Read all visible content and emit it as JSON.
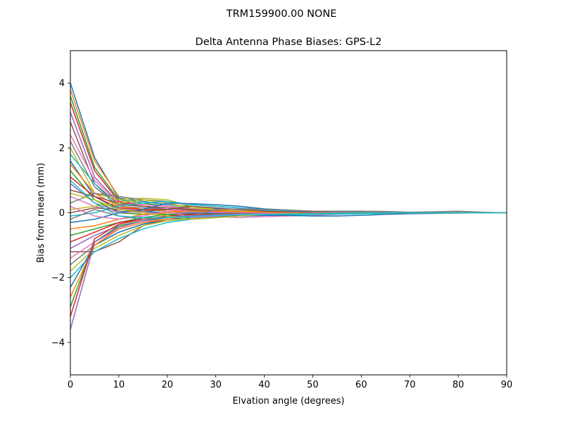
{
  "suptitle": "TRM159900.00    NONE",
  "chart_data": {
    "type": "line",
    "title": "Delta Antenna Phase Biases: GPS-L2",
    "xlabel": "Elvation angle (degrees)",
    "ylabel": "Bias from mean (mm)",
    "xlim": [
      0,
      90
    ],
    "ylim": [
      -5,
      5
    ],
    "xticks": [
      0,
      10,
      20,
      30,
      40,
      50,
      60,
      70,
      80,
      90
    ],
    "yticks": [
      -4,
      -2,
      0,
      2,
      4
    ],
    "ytick_labels": [
      "−4",
      "−2",
      "0",
      "2",
      "4"
    ],
    "grid": false,
    "colors": [
      "#1f77b4",
      "#ff7f0e",
      "#2ca02c",
      "#d62728",
      "#9467bd",
      "#8c564b",
      "#e377c2",
      "#7f7f7f",
      "#bcbd22",
      "#17becf"
    ],
    "x": [
      0,
      5,
      10,
      15,
      20,
      25,
      30,
      35,
      40,
      45,
      50,
      55,
      60,
      65,
      70,
      75,
      80,
      85,
      90
    ],
    "series": [
      {
        "values": [
          4.0,
          1.7,
          0.45,
          0.35,
          0.25,
          0.2,
          0.12,
          0.1,
          0.05,
          0.05,
          0.03,
          0.03,
          0.03,
          0.02,
          0.01,
          0.0,
          0.01,
          0.0,
          0.0
        ]
      },
      {
        "values": [
          3.8,
          1.6,
          0.5,
          0.4,
          0.3,
          0.15,
          0.1,
          0.08,
          0.05,
          0.04,
          0.03,
          0.02,
          0.04,
          0.03,
          0.01,
          0.01,
          0.0,
          0.0,
          0.0
        ]
      },
      {
        "values": [
          3.6,
          1.4,
          0.4,
          0.3,
          0.2,
          0.15,
          0.1,
          0.08,
          0.06,
          0.03,
          0.02,
          0.02,
          0.02,
          0.01,
          0.0,
          0.0,
          0.01,
          0.0,
          0.0
        ]
      },
      {
        "values": [
          3.4,
          1.3,
          0.35,
          0.25,
          0.2,
          0.1,
          0.08,
          0.05,
          0.04,
          0.03,
          0.02,
          0.01,
          0.02,
          0.01,
          0.0,
          -0.01,
          0.0,
          0.0,
          0.0
        ]
      },
      {
        "values": [
          3.1,
          1.1,
          0.3,
          0.2,
          0.15,
          0.1,
          0.05,
          0.05,
          0.03,
          0.02,
          0.02,
          0.01,
          0.01,
          0.01,
          0.0,
          0.0,
          0.0,
          0.0,
          0.0
        ]
      },
      {
        "values": [
          2.8,
          0.9,
          0.25,
          0.2,
          0.1,
          0.08,
          0.05,
          0.04,
          0.03,
          0.02,
          0.01,
          0.01,
          0.0,
          0.0,
          0.0,
          0.0,
          0.0,
          0.0,
          0.0
        ]
      },
      {
        "values": [
          2.4,
          1.0,
          0.3,
          0.25,
          0.2,
          0.12,
          0.1,
          0.07,
          0.05,
          0.03,
          0.02,
          0.02,
          0.01,
          0.0,
          0.0,
          0.0,
          0.0,
          0.0,
          0.0
        ]
      },
      {
        "values": [
          2.2,
          0.8,
          0.2,
          0.15,
          0.1,
          0.05,
          0.05,
          0.03,
          0.02,
          0.01,
          0.01,
          0.0,
          0.0,
          0.0,
          0.0,
          0.0,
          0.0,
          0.0,
          0.0
        ]
      },
      {
        "values": [
          2.0,
          0.6,
          0.4,
          0.45,
          0.4,
          0.2,
          0.1,
          0.05,
          0.03,
          0.02,
          0.02,
          0.01,
          0.01,
          0.0,
          0.0,
          0.0,
          0.0,
          0.0,
          0.0
        ]
      },
      {
        "values": [
          1.8,
          0.9,
          0.15,
          0.1,
          0.05,
          0.03,
          0.02,
          0.02,
          0.01,
          0.01,
          0.0,
          0.0,
          0.0,
          0.0,
          0.0,
          0.0,
          0.0,
          0.0,
          0.0
        ]
      },
      {
        "values": [
          1.6,
          0.5,
          0.1,
          0.05,
          0.0,
          -0.02,
          -0.02,
          -0.01,
          -0.01,
          0.0,
          0.0,
          0.0,
          0.0,
          0.0,
          0.0,
          0.0,
          0.0,
          0.0,
          0.0
        ]
      },
      {
        "values": [
          1.5,
          0.6,
          0.2,
          0.1,
          0.05,
          0.05,
          0.04,
          0.03,
          0.02,
          0.01,
          0.0,
          0.0,
          0.0,
          0.0,
          0.0,
          0.0,
          0.0,
          0.0,
          0.0
        ]
      },
      {
        "values": [
          1.3,
          0.4,
          0.0,
          -0.05,
          -0.05,
          -0.05,
          -0.03,
          -0.02,
          -0.02,
          -0.01,
          0.0,
          0.0,
          0.0,
          0.0,
          0.0,
          0.0,
          0.0,
          0.0,
          0.0
        ]
      },
      {
        "values": [
          1.1,
          0.5,
          0.15,
          0.1,
          0.1,
          0.05,
          0.03,
          0.02,
          0.02,
          0.01,
          0.0,
          0.0,
          0.0,
          0.0,
          0.0,
          0.0,
          0.0,
          0.0,
          0.0
        ]
      },
      {
        "values": [
          0.9,
          0.3,
          0.05,
          0.0,
          0.0,
          0.0,
          0.0,
          0.0,
          0.0,
          0.0,
          0.0,
          0.0,
          0.0,
          0.0,
          0.0,
          0.0,
          0.0,
          0.0,
          0.0
        ]
      },
      {
        "values": [
          0.7,
          0.5,
          0.3,
          0.2,
          0.15,
          0.1,
          0.05,
          0.03,
          0.02,
          0.01,
          0.0,
          0.0,
          0.0,
          0.0,
          0.0,
          0.0,
          0.0,
          0.0,
          0.0
        ]
      },
      {
        "values": [
          0.5,
          0.2,
          0.0,
          0.05,
          0.1,
          0.05,
          0.03,
          0.02,
          0.01,
          0.0,
          0.0,
          0.0,
          0.0,
          0.0,
          0.0,
          0.0,
          0.0,
          0.0,
          0.0
        ]
      },
      {
        "values": [
          0.3,
          0.6,
          0.5,
          0.4,
          0.35,
          0.25,
          0.2,
          0.15,
          0.1,
          0.05,
          0.03,
          0.02,
          0.01,
          0.0,
          0.0,
          0.0,
          0.0,
          0.0,
          0.0
        ]
      },
      {
        "values": [
          0.1,
          0.2,
          0.3,
          0.4,
          0.3,
          0.15,
          0.1,
          0.05,
          0.03,
          0.02,
          0.01,
          0.0,
          0.0,
          0.0,
          0.0,
          0.0,
          0.0,
          0.0,
          0.0
        ]
      },
      {
        "values": [
          -0.1,
          0.0,
          0.2,
          0.3,
          0.35,
          0.25,
          0.2,
          0.15,
          0.08,
          0.05,
          0.03,
          0.02,
          0.01,
          0.0,
          0.0,
          0.0,
          0.0,
          0.0,
          0.0
        ]
      },
      {
        "values": [
          -0.3,
          -0.2,
          0.0,
          0.1,
          0.3,
          0.28,
          0.25,
          0.2,
          0.12,
          0.08,
          0.05,
          0.03,
          0.02,
          0.01,
          0.0,
          0.0,
          0.0,
          0.0,
          0.0
        ]
      },
      {
        "values": [
          -0.5,
          -0.4,
          -0.2,
          -0.05,
          0.0,
          0.05,
          0.05,
          0.03,
          0.02,
          0.0,
          0.0,
          0.0,
          0.0,
          0.0,
          0.0,
          0.0,
          0.0,
          0.0,
          0.0
        ]
      },
      {
        "values": [
          -0.7,
          -0.5,
          -0.3,
          -0.15,
          -0.05,
          -0.1,
          -0.08,
          -0.05,
          -0.03,
          -0.02,
          -0.01,
          0.0,
          0.0,
          0.0,
          0.0,
          0.0,
          0.0,
          0.0,
          0.0
        ]
      },
      {
        "values": [
          -0.9,
          -0.6,
          -0.3,
          -0.2,
          -0.1,
          -0.05,
          -0.05,
          -0.04,
          -0.03,
          -0.02,
          -0.01,
          0.0,
          0.0,
          0.0,
          0.0,
          0.0,
          0.0,
          0.0,
          0.0
        ]
      },
      {
        "values": [
          -1.1,
          -0.7,
          -0.4,
          -0.25,
          -0.15,
          -0.12,
          -0.1,
          -0.08,
          -0.05,
          -0.04,
          -0.03,
          -0.02,
          -0.01,
          0.0,
          0.0,
          0.0,
          0.0,
          0.0,
          0.0
        ]
      },
      {
        "values": [
          -1.2,
          -1.2,
          -0.9,
          -0.4,
          -0.2,
          -0.15,
          -0.1,
          -0.08,
          -0.06,
          -0.05,
          -0.04,
          -0.03,
          -0.02,
          -0.01,
          0.0,
          0.0,
          0.0,
          0.0,
          0.0
        ]
      },
      {
        "values": [
          -1.4,
          -0.9,
          -0.5,
          -0.3,
          -0.15,
          -0.1,
          -0.12,
          -0.15,
          -0.12,
          -0.1,
          -0.08,
          -0.05,
          -0.03,
          -0.02,
          -0.01,
          0.0,
          0.0,
          0.0,
          0.0
        ]
      },
      {
        "values": [
          -1.6,
          -1.0,
          -0.6,
          -0.35,
          -0.2,
          -0.15,
          -0.1,
          -0.08,
          -0.05,
          -0.03,
          -0.02,
          -0.01,
          0.0,
          0.0,
          0.0,
          0.0,
          0.0,
          0.0,
          0.0
        ]
      },
      {
        "values": [
          -1.8,
          -1.1,
          -0.7,
          -0.4,
          -0.25,
          -0.18,
          -0.12,
          -0.1,
          -0.08,
          -0.06,
          -0.05,
          -0.04,
          -0.03,
          -0.02,
          -0.01,
          0.0,
          0.0,
          0.0,
          0.0
        ]
      },
      {
        "values": [
          -2.0,
          -1.2,
          -0.8,
          -0.5,
          -0.3,
          -0.2,
          -0.15,
          -0.1,
          -0.08,
          -0.07,
          -0.05,
          -0.04,
          -0.03,
          -0.02,
          -0.01,
          0.0,
          0.0,
          0.0,
          0.0
        ]
      },
      {
        "values": [
          -2.3,
          -1.0,
          -0.6,
          -0.35,
          -0.2,
          -0.15,
          -0.12,
          -0.1,
          -0.08,
          -0.08,
          -0.1,
          -0.1,
          -0.08,
          -0.05,
          -0.03,
          -0.02,
          -0.01,
          0.0,
          0.0
        ]
      },
      {
        "values": [
          -2.6,
          -1.0,
          -0.5,
          -0.3,
          -0.2,
          -0.1,
          -0.08,
          -0.06,
          -0.04,
          -0.03,
          -0.02,
          -0.01,
          0.0,
          0.0,
          0.0,
          0.0,
          0.0,
          0.0,
          0.0
        ]
      },
      {
        "values": [
          -2.9,
          -0.9,
          -0.4,
          -0.25,
          -0.15,
          -0.1,
          -0.08,
          -0.05,
          -0.04,
          -0.03,
          -0.02,
          -0.01,
          0.0,
          0.0,
          0.0,
          0.0,
          0.0,
          0.0,
          0.0
        ]
      },
      {
        "values": [
          -3.2,
          -0.8,
          -0.35,
          -0.2,
          -0.1,
          -0.08,
          -0.05,
          -0.04,
          -0.03,
          -0.02,
          -0.01,
          0.0,
          0.0,
          0.0,
          0.0,
          0.0,
          0.0,
          0.0,
          0.0
        ]
      },
      {
        "values": [
          -3.6,
          -0.9,
          -0.45,
          -0.25,
          -0.12,
          -0.08,
          -0.06,
          -0.04,
          -0.03,
          -0.02,
          -0.01,
          0.0,
          0.0,
          0.0,
          0.0,
          0.0,
          0.0,
          0.0,
          0.0
        ]
      },
      {
        "values": [
          0.0,
          0.15,
          0.1,
          0.05,
          0.1,
          0.2,
          0.15,
          0.1,
          0.05,
          0.03,
          0.02,
          0.01,
          0.0,
          0.0,
          0.0,
          0.0,
          0.0,
          0.0,
          0.0
        ]
      },
      {
        "values": [
          0.2,
          -0.1,
          -0.2,
          -0.1,
          0.05,
          -0.15,
          -0.1,
          -0.05,
          -0.03,
          -0.02,
          -0.01,
          0.0,
          0.0,
          0.0,
          0.0,
          0.0,
          0.0,
          0.0,
          0.0
        ]
      },
      {
        "values": [
          -0.2,
          0.1,
          -0.1,
          -0.2,
          -0.15,
          -0.1,
          0.1,
          0.12,
          0.1,
          0.08,
          0.05,
          0.05,
          0.05,
          0.04,
          0.02,
          0.03,
          0.05,
          0.02,
          0.0
        ]
      },
      {
        "values": [
          0.6,
          0.4,
          0.1,
          0.0,
          -0.1,
          -0.2,
          -0.15,
          -0.1,
          -0.05,
          -0.03,
          -0.02,
          -0.01,
          0.0,
          0.0,
          0.0,
          0.0,
          0.0,
          0.0,
          0.0
        ]
      },
      {
        "values": [
          1.0,
          0.3,
          -0.1,
          -0.15,
          -0.15,
          -0.12,
          -0.08,
          -0.06,
          -0.05,
          -0.04,
          -0.03,
          -0.02,
          -0.01,
          0.0,
          0.0,
          0.0,
          0.0,
          0.0,
          0.0
        ]
      }
    ]
  }
}
